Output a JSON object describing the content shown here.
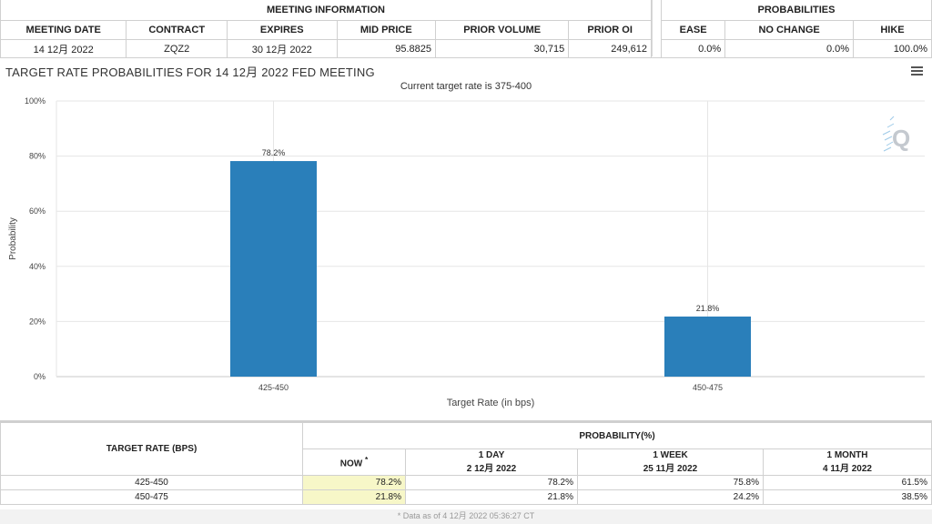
{
  "meeting_info": {
    "group_label": "MEETING INFORMATION",
    "headers": [
      "MEETING DATE",
      "CONTRACT",
      "EXPIRES",
      "MID PRICE",
      "PRIOR VOLUME",
      "PRIOR OI"
    ],
    "row": [
      "14 12月 2022",
      "ZQZ2",
      "30 12月 2022",
      "95.8825",
      "30,715",
      "249,612"
    ]
  },
  "probabilities": {
    "group_label": "PROBABILITIES",
    "headers": [
      "EASE",
      "NO CHANGE",
      "HIKE"
    ],
    "row": [
      "0.0%",
      "0.0%",
      "100.0%"
    ]
  },
  "chart_data": {
    "type": "bar",
    "title": "TARGET RATE PROBABILITIES FOR 14 12月 2022 FED MEETING",
    "subtitle": "Current target rate is 375-400",
    "categories": [
      "425-450",
      "450-475"
    ],
    "values": [
      78.2,
      21.8
    ],
    "data_labels": [
      "78.2%",
      "21.8%"
    ],
    "xlabel": "Target Rate (in bps)",
    "ylabel": "Probability",
    "ylim": [
      0,
      100
    ],
    "yticks": [
      "0%",
      "20%",
      "40%",
      "60%",
      "80%",
      "100%"
    ],
    "bar_color": "#2a7fba",
    "grid": true
  },
  "bottom_table": {
    "target_rate_header": "TARGET RATE (BPS)",
    "probability_header": "PROBABILITY(%)",
    "now_label": "NOW",
    "now_marker": "*",
    "cols": [
      {
        "label": "1 DAY",
        "date": "2 12月 2022"
      },
      {
        "label": "1 WEEK",
        "date": "25 11月 2022"
      },
      {
        "label": "1 MONTH",
        "date": "4 11月 2022"
      }
    ],
    "rows": [
      {
        "rate": "425-450",
        "now": "78.2%",
        "d1": "78.2%",
        "w1": "75.8%",
        "m1": "61.5%"
      },
      {
        "rate": "450-475",
        "now": "21.8%",
        "d1": "21.8%",
        "w1": "24.2%",
        "m1": "38.5%"
      }
    ]
  },
  "footnote": "* Data as of 4 12月 2022 05:36:27 CT"
}
